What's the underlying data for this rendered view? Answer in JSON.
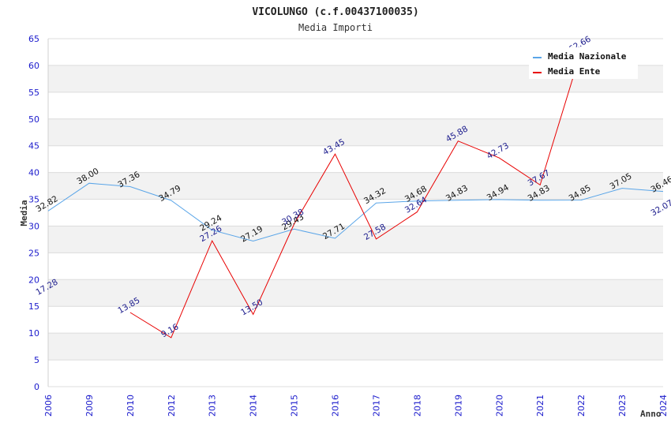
{
  "chart_data": {
    "type": "line",
    "title": "VICOLUNGO (c.f.00437100035)",
    "subtitle": "Media Importi",
    "xlabel": "Anno",
    "ylabel": "Media",
    "ylim": [
      0,
      65
    ],
    "yticks": [
      "0",
      "5",
      "10",
      "15",
      "20",
      "25",
      "30",
      "35",
      "40",
      "45",
      "50",
      "55",
      "60",
      "65"
    ],
    "categories": [
      "2006",
      "2009",
      "2010",
      "2012",
      "2013",
      "2014",
      "2015",
      "2016",
      "2017",
      "2018",
      "2019",
      "2020",
      "2021",
      "2022",
      "2023",
      "2024"
    ],
    "grid": true,
    "legend_position": "top-right",
    "series": [
      {
        "name": "Media Nazionale",
        "color": "#5aa5e8",
        "values": [
          32.82,
          38.0,
          37.36,
          34.79,
          29.24,
          27.19,
          29.43,
          27.71,
          34.32,
          34.68,
          34.83,
          34.94,
          34.83,
          34.85,
          37.05,
          36.46
        ],
        "labels": [
          "32.82",
          "38.00",
          "37.36",
          "34.79",
          "29.24",
          "27.19",
          "29.43",
          "27.71",
          "34.32",
          "34.68",
          "34.83",
          "34.94",
          "34.83",
          "34.85",
          "37.05",
          "36.46"
        ]
      },
      {
        "name": "Media Ente",
        "color": "#e80000",
        "values": [
          17.28,
          null,
          13.85,
          9.16,
          27.26,
          13.5,
          30.38,
          43.45,
          27.58,
          32.64,
          45.88,
          42.73,
          37.67,
          62.66,
          null,
          32.07
        ],
        "labels": [
          "17.28",
          null,
          "13.85",
          "9.16",
          "27.26",
          "13.50",
          "30.38",
          "43.45",
          "27.58",
          "32.64",
          "45.88",
          "42.73",
          "37.67",
          "62.66",
          null,
          "32.07"
        ]
      }
    ]
  }
}
